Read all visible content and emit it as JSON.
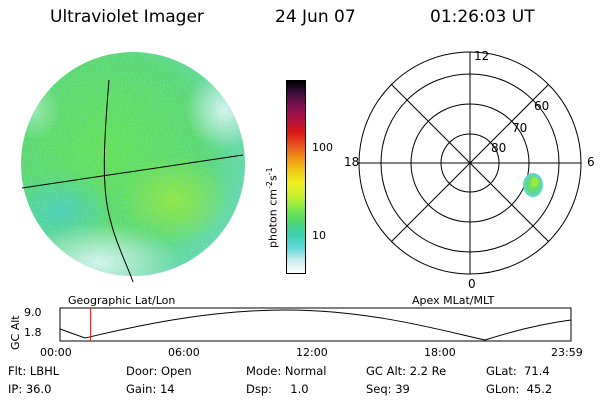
{
  "header": {
    "instrument": "Ultraviolet Imager",
    "date": "24 Jun 07",
    "time": "01:26:03 UT"
  },
  "colorbar": {
    "label": "photon cm",
    "label_exp1": "-2",
    "label_mid": "s",
    "label_exp2": "-1",
    "ticks": [
      "100",
      "10"
    ],
    "stops": [
      "#ffffff",
      "#c8ecec",
      "#5fd8d8",
      "#3dd0b0",
      "#4ed870",
      "#7ce84a",
      "#c8f030",
      "#f0f020",
      "#f0c818",
      "#f09018",
      "#e85020",
      "#d81818",
      "#b01040",
      "#801050",
      "#401040",
      "#000000"
    ]
  },
  "left_panel": {
    "label": "Geographic Lat/Lon"
  },
  "right_panel": {
    "label": "Apex MLat/MLT",
    "mlt_labels": {
      "top": "12",
      "left": "18",
      "right": "6",
      "bottom": "0"
    },
    "lat_labels": [
      "60",
      "70",
      "80"
    ]
  },
  "altitude_plot": {
    "ylabel": "GC Alt",
    "yticks": [
      "9.0",
      "1.8"
    ],
    "xticks": [
      "00:00",
      "06:00",
      "12:00",
      "18:00",
      "23:59"
    ],
    "marker_time_hours": 1.435
  },
  "footer": {
    "flt": "Flt: LBHL",
    "ip": "IP: 36.0",
    "door": "Door: Open",
    "gain": "Gain: 14",
    "mode": "Mode: Normal",
    "dsp": "Dsp:     1.0",
    "gcalt": "GC Alt: 2.2 Re",
    "seq": "Seq: 39",
    "glat": "GLat:  71.4",
    "glon": "GLon:  45.2"
  }
}
